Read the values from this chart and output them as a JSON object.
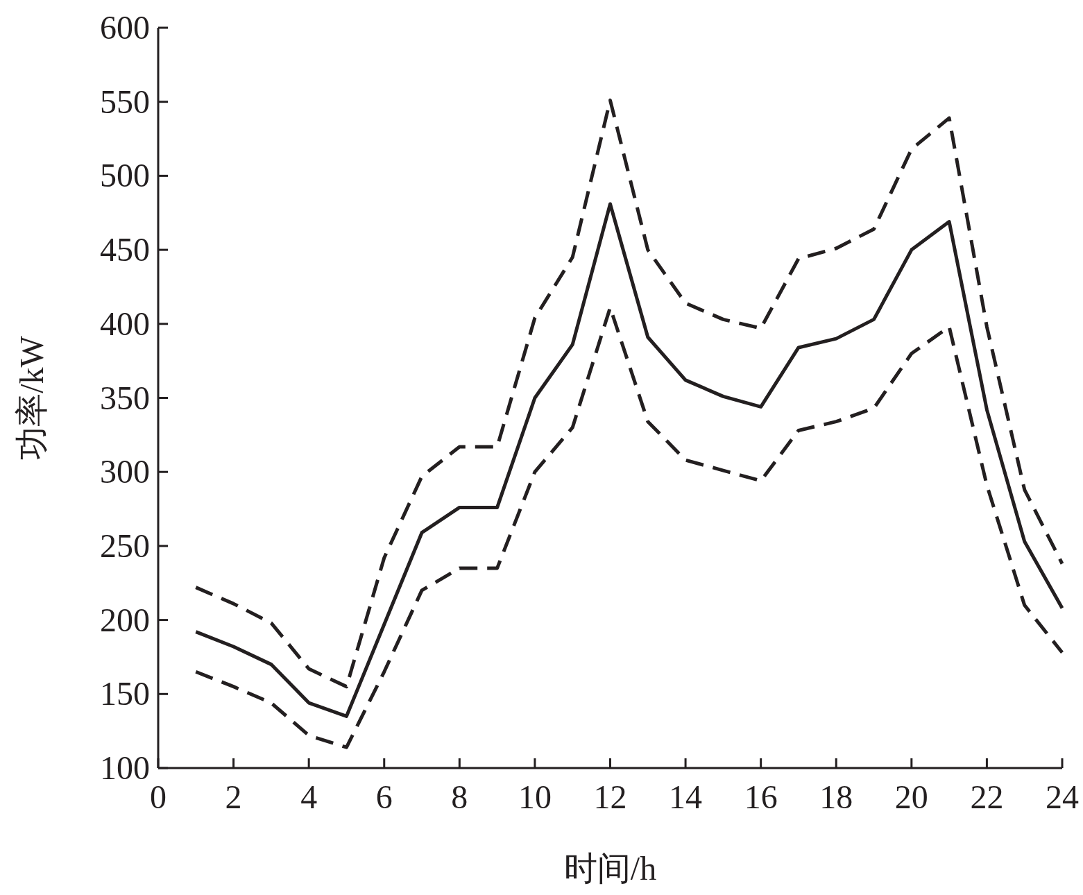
{
  "chart_data": {
    "type": "line",
    "xlabel": "时间/h",
    "ylabel": "功率/kW",
    "x": [
      1,
      2,
      3,
      4,
      5,
      6,
      7,
      8,
      9,
      10,
      11,
      12,
      13,
      14,
      15,
      16,
      17,
      18,
      19,
      20,
      21,
      22,
      23,
      24
    ],
    "series": [
      {
        "color": "#231f20",
        "line_style": "dashed",
        "values": [
          222,
          211,
          198,
          167,
          155,
          242,
          297,
          317,
          317,
          404,
          445,
          551,
          450,
          414,
          403,
          397,
          444,
          451,
          464,
          518,
          539,
          398,
          288,
          238
        ]
      },
      {
        "color": "#231f20",
        "line_style": "solid",
        "values": [
          192,
          182,
          170,
          144,
          135,
          197,
          259,
          276,
          276,
          350,
          386,
          481,
          391,
          362,
          351,
          344,
          384,
          390,
          403,
          450,
          469,
          342,
          253,
          208
        ]
      },
      {
        "color": "#231f20",
        "line_style": "dashed",
        "values": [
          165,
          155,
          144,
          122,
          114,
          165,
          220,
          235,
          235,
          300,
          330,
          411,
          334,
          308,
          301,
          294,
          328,
          334,
          343,
          380,
          398,
          291,
          210,
          178
        ]
      }
    ],
    "xlim": [
      0,
      24
    ],
    "ylim": [
      100,
      600
    ],
    "xticks": [
      0,
      2,
      4,
      6,
      8,
      10,
      12,
      14,
      16,
      18,
      20,
      22,
      24
    ],
    "yticks": [
      100,
      150,
      200,
      250,
      300,
      350,
      400,
      450,
      500,
      550,
      600
    ],
    "grid": false
  }
}
